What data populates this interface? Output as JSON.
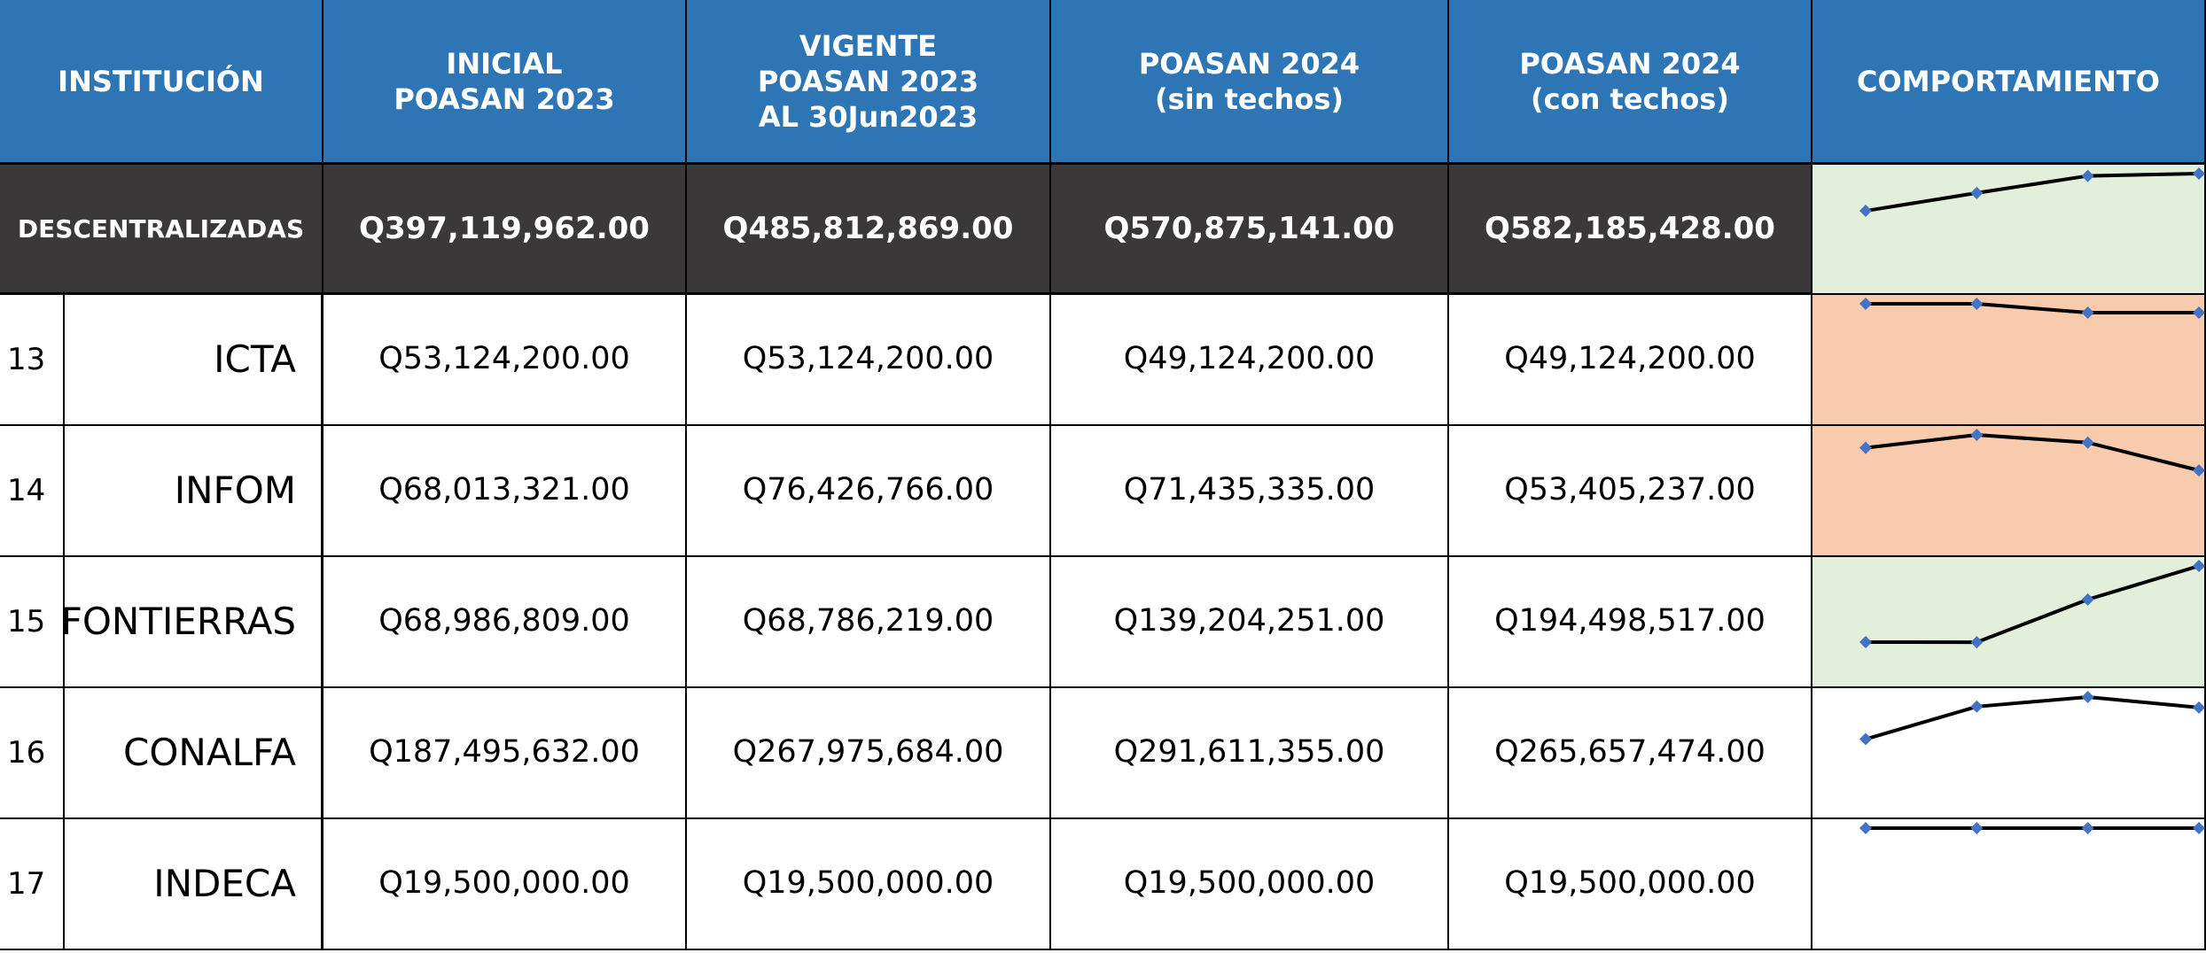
{
  "columns": [
    [
      "INSTITUCIÓN"
    ],
    [
      "INICIAL",
      "POASAN 2023"
    ],
    [
      "VIGENTE",
      "POASAN 2023",
      "AL 30Jun2023"
    ],
    [
      "POASAN 2024",
      "(sin techos)"
    ],
    [
      "POASAN 2024",
      "(con techos)"
    ],
    [
      "COMPORTAMIENTO"
    ]
  ],
  "total": {
    "name": "DESCENTRALIZADAS",
    "values": [
      397119962,
      485812869,
      570875141,
      582185428
    ],
    "value_labels": [
      "Q397,119,962.00",
      "Q485,812,869.00",
      "Q570,875,141.00",
      "Q582,185,428.00"
    ],
    "trend_color": "#e2efda"
  },
  "rows": [
    {
      "number": 13,
      "name": "ICTA",
      "values": [
        53124200,
        53124200,
        49124200,
        49124200
      ],
      "value_labels": [
        "Q53,124,200.00",
        "Q53,124,200.00",
        "Q49,124,200.00",
        "Q49,124,200.00"
      ],
      "trend_color": "#f8cbad"
    },
    {
      "number": 14,
      "name": "INFOM",
      "values": [
        68013321,
        76426766,
        71435335,
        53405237
      ],
      "value_labels": [
        "Q68,013,321.00",
        "Q76,426,766.00",
        "Q71,435,335.00",
        "Q53,405,237.00"
      ],
      "trend_color": "#f8cbad"
    },
    {
      "number": 15,
      "name": "FONTIERRAS",
      "values": [
        68986809,
        68786219,
        139204251,
        194498517
      ],
      "value_labels": [
        "Q68,986,809.00",
        "Q68,786,219.00",
        "Q139,204,251.00",
        "Q194,498,517.00"
      ],
      "trend_color": "#e2efda"
    },
    {
      "number": 16,
      "name": "CONALFA",
      "values": [
        187495632,
        267975684,
        291611355,
        265657474
      ],
      "value_labels": [
        "Q187,495,632.00",
        "Q267,975,684.00",
        "Q291,611,355.00",
        "Q265,657,474.00"
      ],
      "trend_color": "#ffffff"
    },
    {
      "number": 17,
      "name": "INDECA",
      "values": [
        19500000,
        19500000,
        19500000,
        19500000
      ],
      "value_labels": [
        "Q19,500,000.00",
        "Q19,500,000.00",
        "Q19,500,000.00",
        "Q19,500,000.00"
      ],
      "trend_color": "#ffffff"
    }
  ]
}
